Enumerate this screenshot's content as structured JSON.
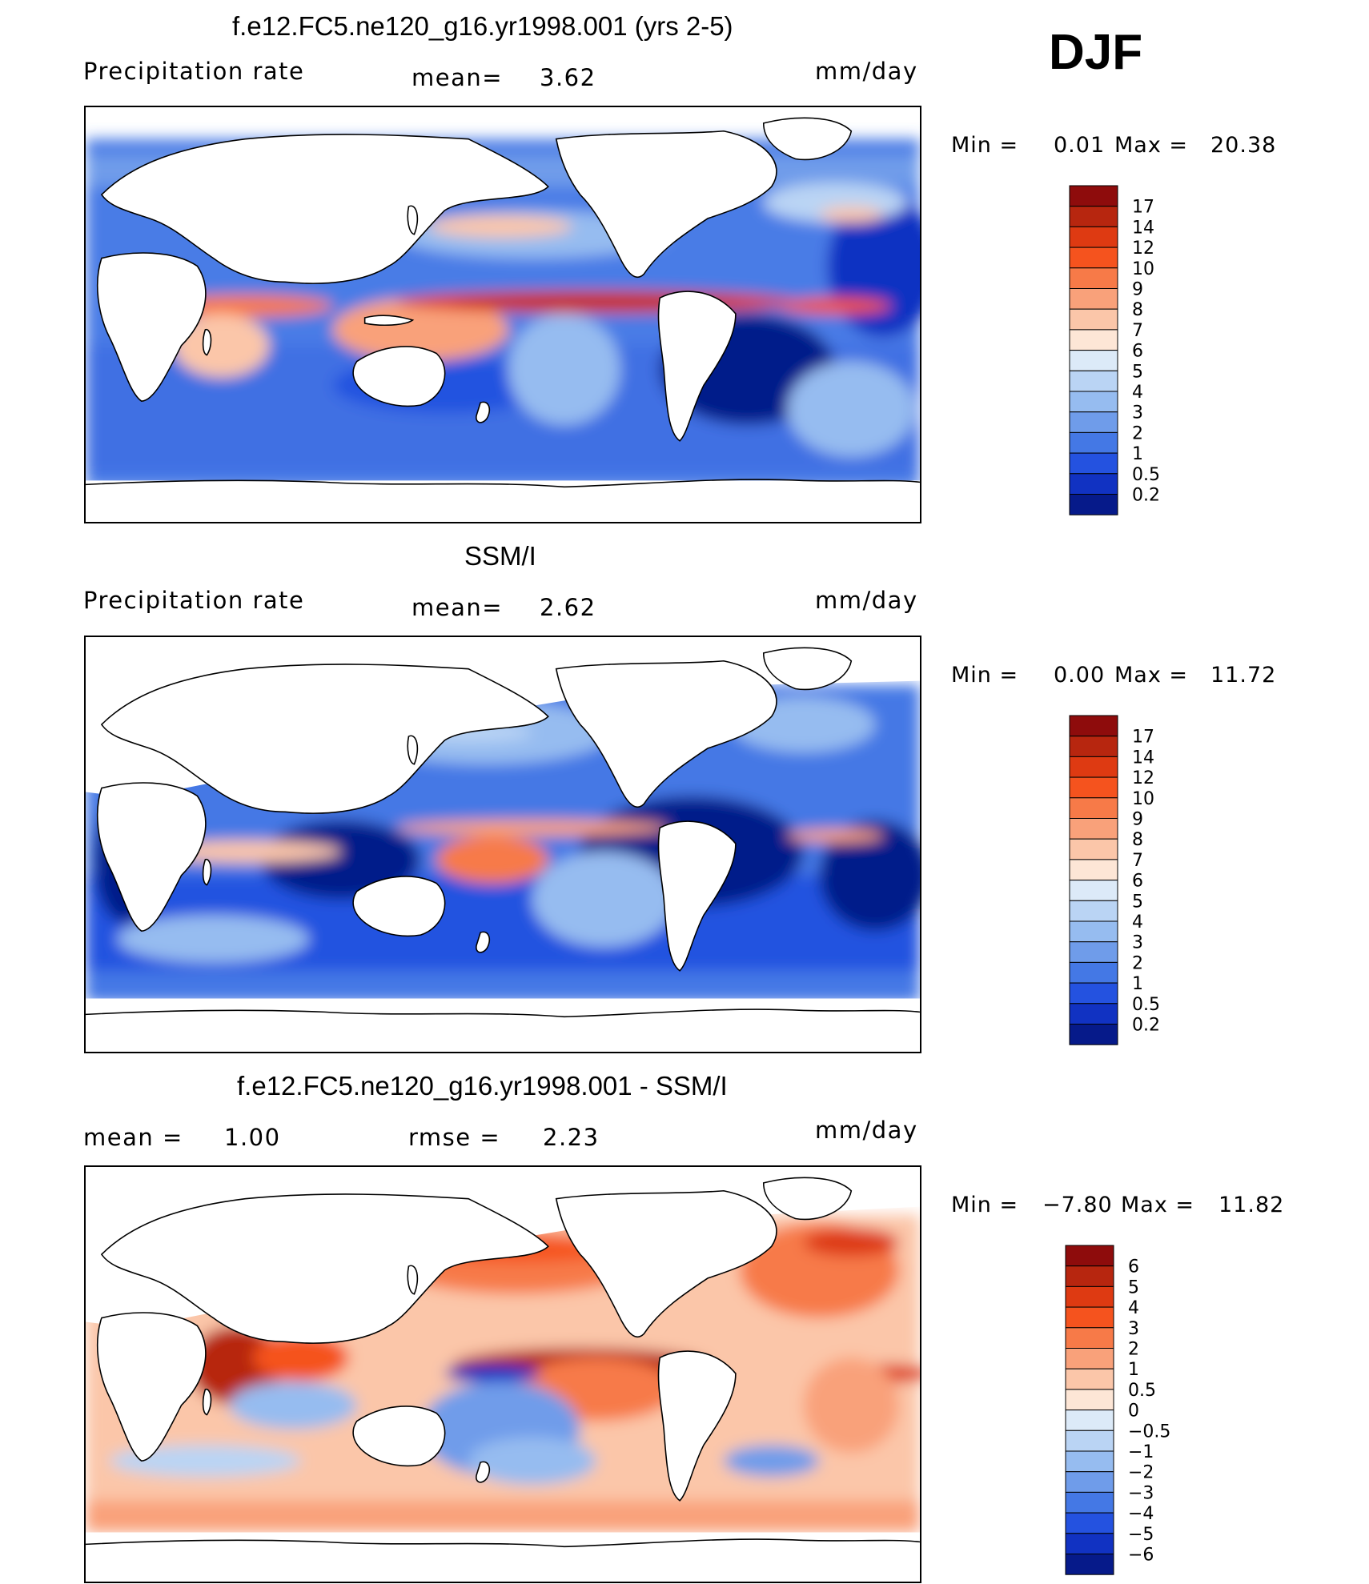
{
  "season": "DJF",
  "chart_data": [
    {
      "type": "heatmap",
      "title": "f.e12.FC5.ne120_g16.yr1998.001 (yrs 2-5)",
      "left_label": "Precipitation  rate",
      "stat_label": "mean=",
      "stat_value": "3.62",
      "units": "mm/day",
      "min_label": "Min  =",
      "min_value": "0.01",
      "max_label": "Max  =",
      "max_value": "20.38",
      "colorbar": {
        "levels": [
          "17",
          "14",
          "12",
          "10",
          "9",
          "8",
          "7",
          "6",
          "5",
          "4",
          "3",
          "2",
          "1",
          "0.5",
          "0.2"
        ],
        "colors": [
          "#8e0c0c",
          "#b7260f",
          "#de3a12",
          "#f5531e",
          "#f77a48",
          "#f9a17a",
          "#fbc6a9",
          "#fde6d6",
          "#dceaf8",
          "#bad4f4",
          "#96bcf0",
          "#6f9cea",
          "#4478e5",
          "#2452e0",
          "#1132c2",
          "#061a8a"
        ]
      }
    },
    {
      "type": "heatmap",
      "title": "SSM/I",
      "left_label": "Precipitation  rate",
      "stat_label": "mean=",
      "stat_value": "2.62",
      "units": "mm/day",
      "min_label": "Min  =",
      "min_value": "0.00",
      "max_label": "Max  =",
      "max_value": "11.72",
      "colorbar": {
        "levels": [
          "17",
          "14",
          "12",
          "10",
          "9",
          "8",
          "7",
          "6",
          "5",
          "4",
          "3",
          "2",
          "1",
          "0.5",
          "0.2"
        ],
        "colors": [
          "#8e0c0c",
          "#b7260f",
          "#de3a12",
          "#f5531e",
          "#f77a48",
          "#f9a17a",
          "#fbc6a9",
          "#fde6d6",
          "#dceaf8",
          "#bad4f4",
          "#96bcf0",
          "#6f9cea",
          "#4478e5",
          "#2452e0",
          "#1132c2",
          "#061a8a"
        ]
      }
    },
    {
      "type": "heatmap",
      "title": "f.e12.FC5.ne120_g16.yr1998.001 - SSM/I",
      "left_label": "mean  =",
      "left_value": "1.00",
      "stat_label": "rmse  =",
      "stat_value": "2.23",
      "units": "mm/day",
      "min_label": "Min  =",
      "min_value": "−7.80",
      "max_label": "Max  =",
      "max_value": "11.82",
      "colorbar": {
        "levels": [
          "6",
          "5",
          "4",
          "3",
          "2",
          "1",
          "0.5",
          "0",
          "−0.5",
          "−1",
          "−2",
          "−3",
          "−4",
          "−5",
          "−6"
        ],
        "colors": [
          "#8e0c0c",
          "#b7260f",
          "#de3a12",
          "#f5531e",
          "#f77a48",
          "#f9a17a",
          "#fbc6a9",
          "#fde6d6",
          "#dceaf8",
          "#bad4f4",
          "#96bcf0",
          "#6f9cea",
          "#4478e5",
          "#2452e0",
          "#1132c2",
          "#061a8a"
        ]
      }
    }
  ]
}
